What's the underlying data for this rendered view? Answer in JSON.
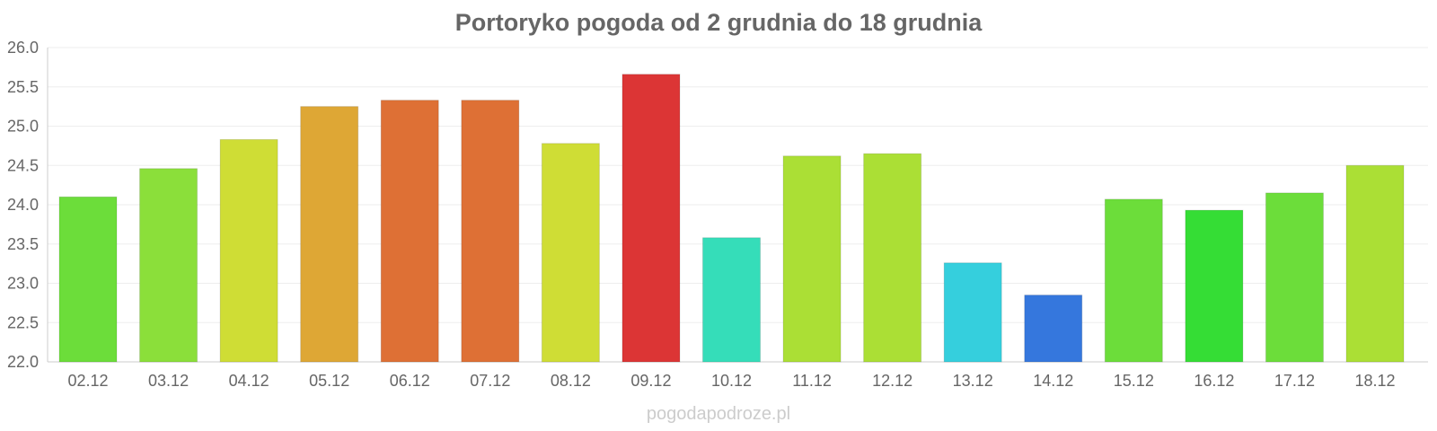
{
  "chart_data": {
    "type": "bar",
    "title": "Portoryko pogoda od 2 grudnia do 18 grudnia",
    "categories": [
      "02.12",
      "03.12",
      "04.12",
      "05.12",
      "06.12",
      "07.12",
      "08.12",
      "09.12",
      "10.12",
      "11.12",
      "12.12",
      "13.12",
      "14.12",
      "15.12",
      "16.12",
      "17.12",
      "18.12"
    ],
    "values": [
      24.1,
      24.46,
      24.83,
      25.25,
      25.33,
      25.33,
      24.78,
      25.66,
      23.58,
      24.62,
      24.65,
      23.26,
      22.85,
      24.07,
      23.93,
      24.15,
      24.5
    ],
    "colors": [
      "#6cdd3a",
      "#8bdf3a",
      "#cfdd35",
      "#dea735",
      "#de7035",
      "#de7035",
      "#cfdd35",
      "#dc3535",
      "#35ddb9",
      "#abdf35",
      "#abdf35",
      "#35cfdd",
      "#3577dd",
      "#6cdd3a",
      "#35dd35",
      "#6cdd3a",
      "#abdf35"
    ],
    "ylim": [
      22.0,
      26.0
    ],
    "yticks": [
      "22.0",
      "22.5",
      "23.0",
      "23.5",
      "24.0",
      "24.5",
      "25.0",
      "25.5",
      "26.0"
    ],
    "grid": true,
    "xlabel": "",
    "ylabel": ""
  },
  "watermark": "pogodapodroze.pl"
}
